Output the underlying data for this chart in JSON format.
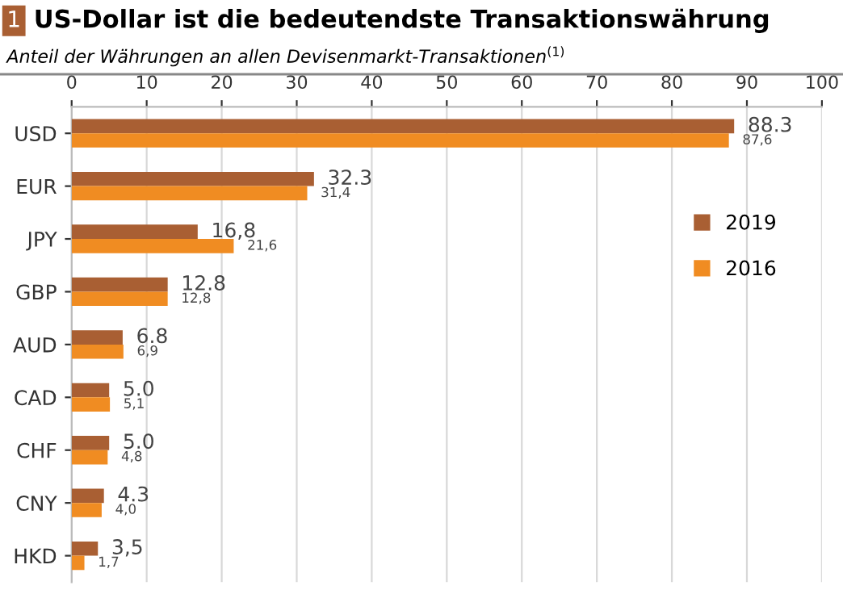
{
  "chart_data": {
    "type": "bar",
    "orientation": "horizontal",
    "title": "US-Dollar ist die bedeutendste Transaktionswährung",
    "subtitle": "Anteil der Währungen an allen Devisenmarkt-Transaktionen$^{(1)}$",
    "annotations": [
      "1"
    ],
    "categories": [
      "USD",
      "EUR",
      "JPY",
      "GBP",
      "AUD",
      "CAD",
      "CHF",
      "CNY",
      "HKD"
    ],
    "series": [
      {
        "name": "2019",
        "color": "#a95f33",
        "values": [
          88.3,
          32.3,
          16.8,
          12.8,
          6.8,
          5.0,
          5.0,
          4.3,
          3.5
        ],
        "value_labels": [
          "88.3",
          "32.3",
          "16,8",
          "12.8",
          "6.8",
          "5.0",
          "5.0",
          "4.3",
          "3,5"
        ]
      },
      {
        "name": "2016",
        "color": "#f08c22",
        "values": [
          87.6,
          31.4,
          21.6,
          12.8,
          6.9,
          5.1,
          4.8,
          4.0,
          1.7
        ],
        "value_labels": [
          "87,6",
          "31,4",
          "21,6",
          "12,8",
          "6,9",
          "5,1",
          "4,8",
          "4,0",
          "1,7"
        ]
      }
    ],
    "xlim": [
      0,
      100
    ],
    "xticks": [
      0,
      10,
      20,
      30,
      40,
      50,
      60,
      70,
      80,
      90,
      100
    ],
    "grid": "x",
    "legend": "right"
  }
}
